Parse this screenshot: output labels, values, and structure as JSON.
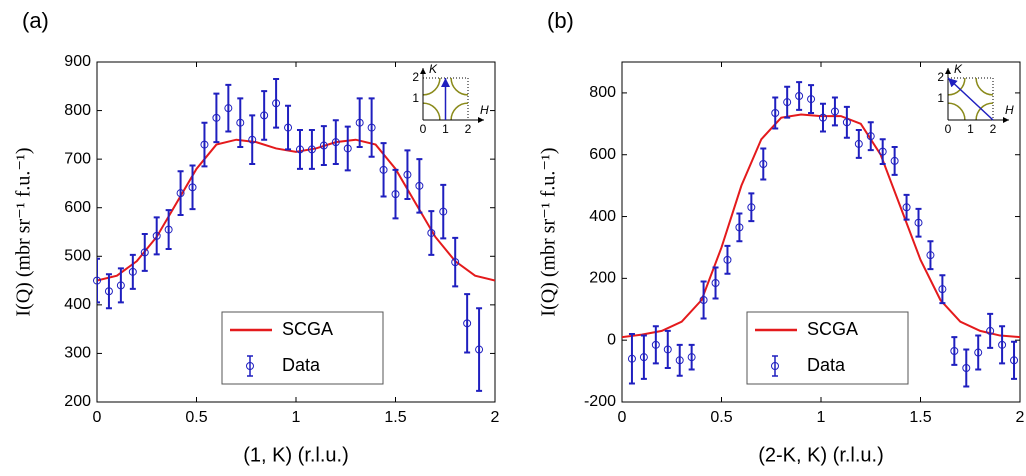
{
  "chart_data": [
    {
      "type": "errorbar",
      "panel_label": "(a)",
      "xlabel": "(1, K) (r.l.u.)",
      "ylabel": "I(Q) (mbr sr⁻¹ f.u.⁻¹)",
      "xlim": [
        0,
        2
      ],
      "xticks": [
        0,
        0.5,
        1,
        1.5,
        2
      ],
      "ylim": [
        200,
        900
      ],
      "yticks": [
        200,
        300,
        400,
        500,
        600,
        700,
        800,
        900
      ],
      "legend": "lower right",
      "series": [
        {
          "name": "SCGA",
          "kind": "line",
          "color": "#e41a1c",
          "x": [
            0,
            0.1,
            0.2,
            0.3,
            0.4,
            0.5,
            0.6,
            0.7,
            0.8,
            0.9,
            1.0,
            1.1,
            1.2,
            1.3,
            1.4,
            1.5,
            1.6,
            1.7,
            1.8,
            1.9,
            2
          ],
          "values": [
            450,
            460,
            490,
            540,
            610,
            680,
            730,
            740,
            735,
            722,
            715,
            722,
            735,
            740,
            730,
            680,
            610,
            540,
            490,
            460,
            450
          ]
        },
        {
          "name": "Data",
          "kind": "errorbar",
          "color": "#1f1fbf",
          "x": [
            0,
            0.06,
            0.12,
            0.18,
            0.24,
            0.3,
            0.36,
            0.42,
            0.48,
            0.54,
            0.6,
            0.66,
            0.72,
            0.78,
            0.84,
            0.9,
            0.96,
            1.02,
            1.08,
            1.14,
            1.2,
            1.26,
            1.32,
            1.38,
            1.44,
            1.5,
            1.56,
            1.62,
            1.68,
            1.74,
            1.8,
            1.86,
            1.92
          ],
          "values": [
            450,
            428,
            440,
            468,
            508,
            542,
            555,
            630,
            642,
            730,
            785,
            805,
            775,
            740,
            790,
            815,
            765,
            720,
            720,
            728,
            735,
            722,
            775,
            765,
            678,
            628,
            668,
            645,
            548,
            592,
            488,
            362,
            308
          ],
          "errors": [
            45,
            35,
            35,
            35,
            38,
            38,
            40,
            45,
            45,
            45,
            50,
            48,
            50,
            50,
            50,
            50,
            45,
            40,
            40,
            40,
            45,
            45,
            50,
            60,
            55,
            50,
            50,
            55,
            45,
            55,
            50,
            60,
            85
          ]
        }
      ],
      "inset": {
        "xlabel": "H",
        "ylabel": "K",
        "xticks": [
          0,
          1,
          2
        ],
        "yticks": [
          1,
          2
        ],
        "arrow": [
          [
            1,
            0
          ],
          [
            1,
            2
          ]
        ]
      }
    },
    {
      "type": "errorbar",
      "panel_label": "(b)",
      "xlabel": "(2-K, K) (r.l.u.)",
      "ylabel": "I(Q) (mbr sr⁻¹ f.u.⁻¹)",
      "xlim": [
        0,
        2
      ],
      "xticks": [
        0,
        0.5,
        1,
        1.5,
        2
      ],
      "ylim": [
        -200,
        900
      ],
      "yticks": [
        -200,
        0,
        200,
        400,
        600,
        800
      ],
      "legend": "lower right",
      "series": [
        {
          "name": "SCGA",
          "kind": "line",
          "color": "#e41a1c",
          "x": [
            0,
            0.1,
            0.2,
            0.3,
            0.4,
            0.5,
            0.6,
            0.7,
            0.8,
            0.9,
            1.0,
            1.1,
            1.2,
            1.3,
            1.4,
            1.5,
            1.6,
            1.7,
            1.8,
            1.9,
            2
          ],
          "values": [
            10,
            18,
            30,
            60,
            130,
            300,
            500,
            650,
            720,
            730,
            725,
            725,
            700,
            600,
            430,
            260,
            130,
            60,
            30,
            15,
            10
          ]
        },
        {
          "name": "Data",
          "kind": "errorbar",
          "color": "#1f1fbf",
          "x": [
            0.05,
            0.11,
            0.17,
            0.23,
            0.29,
            0.35,
            0.41,
            0.47,
            0.53,
            0.59,
            0.65,
            0.71,
            0.77,
            0.83,
            0.89,
            0.95,
            1.01,
            1.07,
            1.13,
            1.19,
            1.25,
            1.31,
            1.37,
            1.43,
            1.49,
            1.55,
            1.61,
            1.67,
            1.73,
            1.79,
            1.85,
            1.91,
            1.97
          ],
          "values": [
            -60,
            -55,
            -15,
            -30,
            -65,
            -55,
            130,
            185,
            260,
            365,
            430,
            570,
            735,
            770,
            790,
            780,
            720,
            740,
            705,
            635,
            660,
            610,
            580,
            430,
            380,
            275,
            165,
            -35,
            -90,
            -40,
            30,
            -15,
            -65
          ],
          "errors": [
            80,
            70,
            60,
            60,
            50,
            40,
            60,
            50,
            45,
            45,
            45,
            50,
            50,
            50,
            45,
            45,
            45,
            45,
            50,
            45,
            45,
            40,
            45,
            40,
            45,
            45,
            45,
            45,
            60,
            55,
            55,
            60,
            60
          ]
        }
      ],
      "inset": {
        "xlabel": "H",
        "ylabel": "K",
        "xticks": [
          0,
          1,
          2
        ],
        "yticks": [
          1,
          2
        ],
        "arrow": [
          [
            2,
            0
          ],
          [
            0,
            2
          ]
        ]
      }
    }
  ]
}
